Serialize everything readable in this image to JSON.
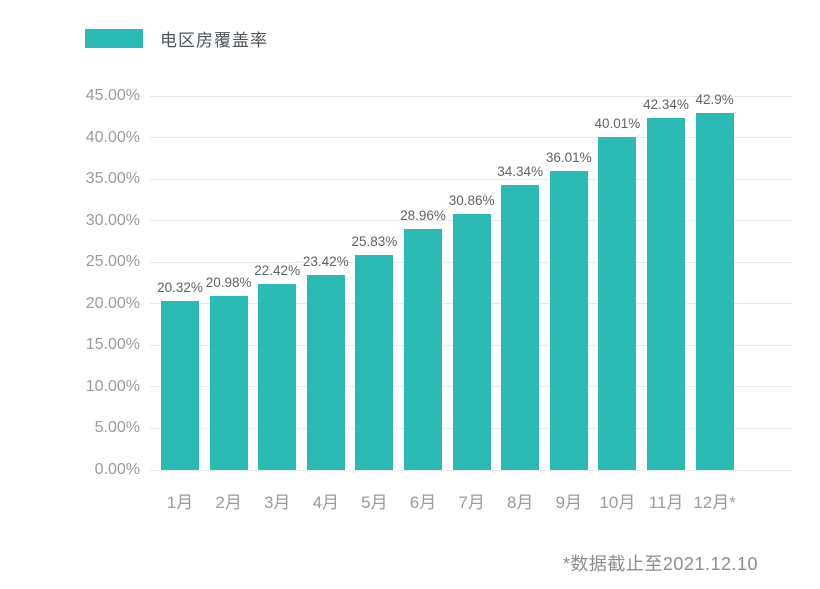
{
  "legend": {
    "label": "电区房覆盖率",
    "swatch_color": "#2bbab4"
  },
  "footnote": "*数据截止至2021.12.10",
  "chart_data": {
    "type": "bar",
    "title": "电区房覆盖率",
    "series_name": "电区房覆盖率",
    "categories": [
      "1月",
      "2月",
      "3月",
      "4月",
      "5月",
      "6月",
      "7月",
      "8月",
      "9月",
      "10月",
      "11月",
      "12月*"
    ],
    "values": [
      20.32,
      20.98,
      22.42,
      23.42,
      25.83,
      28.96,
      30.86,
      34.34,
      36.01,
      40.01,
      42.34,
      42.9
    ],
    "value_labels": [
      "20.32%",
      "20.98%",
      "22.42%",
      "23.42%",
      "25.83%",
      "28.96%",
      "30.86%",
      "34.34%",
      "36.01%",
      "40.01%",
      "42.34%",
      "42.9%"
    ],
    "ytick_labels": [
      "0.00%",
      "5.00%",
      "10.00%",
      "15.00%",
      "20.00%",
      "25.00%",
      "30.00%",
      "35.00%",
      "40.00%",
      "45.00%"
    ],
    "ylim": [
      0,
      45
    ],
    "ytick_step": 5,
    "xlabel": "",
    "ylabel": "",
    "bar_color": "#2bbab4",
    "grid": true,
    "gridline_color": "#e9e9e9",
    "legend_position": "top-left",
    "annotation": "*数据截止至2021.12.10"
  }
}
